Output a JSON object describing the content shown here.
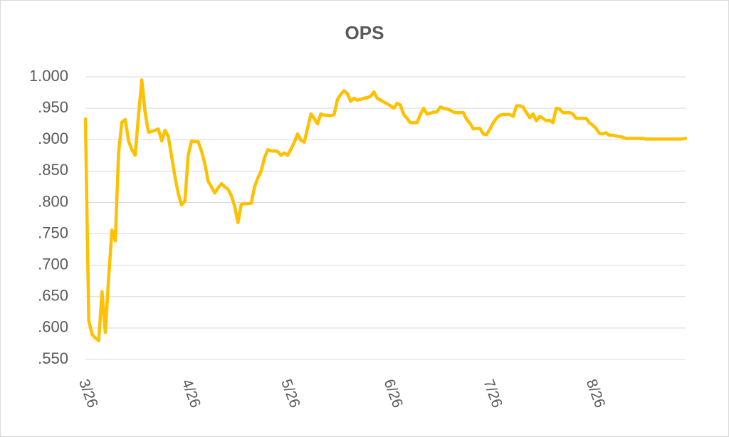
{
  "chart_data": {
    "type": "line",
    "title": "OPS",
    "categories": [
      "3/26",
      null,
      null,
      null,
      null,
      null,
      null,
      null,
      null,
      null,
      null,
      null,
      null,
      null,
      null,
      null,
      null,
      null,
      null,
      null,
      null,
      null,
      null,
      null,
      null,
      null,
      null,
      null,
      null,
      null,
      null,
      "4/26",
      null,
      null,
      null,
      null,
      null,
      null,
      null,
      null,
      null,
      null,
      null,
      null,
      null,
      null,
      null,
      null,
      null,
      null,
      null,
      null,
      null,
      null,
      null,
      null,
      null,
      null,
      null,
      null,
      null,
      "5/26",
      null,
      null,
      null,
      null,
      null,
      null,
      null,
      null,
      null,
      null,
      null,
      null,
      null,
      null,
      null,
      null,
      null,
      null,
      null,
      null,
      null,
      null,
      null,
      null,
      null,
      null,
      null,
      null,
      null,
      null,
      "6/26",
      null,
      null,
      null,
      null,
      null,
      null,
      null,
      null,
      null,
      null,
      null,
      null,
      null,
      null,
      null,
      null,
      null,
      null,
      null,
      null,
      null,
      null,
      null,
      null,
      null,
      null,
      null,
      null,
      null,
      "7/26",
      null,
      null,
      null,
      null,
      null,
      null,
      null,
      null,
      null,
      null,
      null,
      null,
      null,
      null,
      null,
      null,
      null,
      null,
      null,
      null,
      null,
      null,
      null,
      null,
      null,
      null,
      null,
      null,
      null,
      null,
      "8/26",
      null,
      null,
      null,
      null,
      null,
      null,
      null,
      null,
      null,
      null,
      null,
      null,
      null,
      null,
      null,
      null,
      null,
      null,
      null,
      null,
      null,
      null,
      null,
      null,
      null,
      null,
      null,
      null
    ],
    "values": [
      0.933,
      0.612,
      0.59,
      0.584,
      0.58,
      0.658,
      0.593,
      0.68,
      0.756,
      0.739,
      0.879,
      0.928,
      0.932,
      0.898,
      0.884,
      0.875,
      0.938,
      0.995,
      0.943,
      0.912,
      0.913,
      0.915,
      0.917,
      0.898,
      0.915,
      0.905,
      0.873,
      0.841,
      0.814,
      0.796,
      0.802,
      0.875,
      0.898,
      0.897,
      0.897,
      0.882,
      0.862,
      0.834,
      0.825,
      0.815,
      0.823,
      0.83,
      0.825,
      0.821,
      0.811,
      0.794,
      0.768,
      0.797,
      0.798,
      0.798,
      0.799,
      0.825,
      0.839,
      0.85,
      0.871,
      0.884,
      0.882,
      0.882,
      0.881,
      0.875,
      0.879,
      0.875,
      0.885,
      0.896,
      0.909,
      0.899,
      0.896,
      0.918,
      0.941,
      0.934,
      0.925,
      0.941,
      0.939,
      0.939,
      0.938,
      0.94,
      0.964,
      0.972,
      0.978,
      0.973,
      0.961,
      0.966,
      0.963,
      0.964,
      0.966,
      0.967,
      0.969,
      0.976,
      0.966,
      0.963,
      0.96,
      0.957,
      0.954,
      0.95,
      0.958,
      0.955,
      0.94,
      0.934,
      0.927,
      0.927,
      0.927,
      0.94,
      0.95,
      0.941,
      0.942,
      0.944,
      0.944,
      0.952,
      0.95,
      0.949,
      0.947,
      0.944,
      0.943,
      0.943,
      0.943,
      0.932,
      0.926,
      0.917,
      0.918,
      0.918,
      0.909,
      0.908,
      0.917,
      0.927,
      0.934,
      0.939,
      0.94,
      0.94,
      0.94,
      0.937,
      0.954,
      0.954,
      0.952,
      0.943,
      0.935,
      0.941,
      0.93,
      0.937,
      0.934,
      0.93,
      0.931,
      0.927,
      0.95,
      0.949,
      0.943,
      0.943,
      0.943,
      0.941,
      0.934,
      0.934,
      0.934,
      0.934,
      0.927,
      0.923,
      0.918,
      0.91,
      0.909,
      0.911,
      0.907,
      0.907,
      0.906,
      0.905,
      0.904,
      0.902,
      0.902,
      0.902,
      0.902,
      0.902,
      0.902,
      0.901,
      0.901,
      0.901,
      0.901,
      0.901,
      0.901,
      0.901,
      0.901,
      0.901,
      0.901,
      0.901,
      0.901,
      0.902
    ],
    "color": "#ffc000",
    "ylim": [
      0.55,
      1.0
    ],
    "yticks": [
      {
        "value": 0.55,
        "label": ".550"
      },
      {
        "value": 0.6,
        "label": ".600"
      },
      {
        "value": 0.65,
        "label": ".650"
      },
      {
        "value": 0.7,
        "label": ".700"
      },
      {
        "value": 0.75,
        "label": ".750"
      },
      {
        "value": 0.8,
        "label": ".800"
      },
      {
        "value": 0.85,
        "label": ".850"
      },
      {
        "value": 0.9,
        "label": ".900"
      },
      {
        "value": 0.95,
        "label": ".950"
      },
      {
        "value": 1.0,
        "label": "1.000"
      }
    ],
    "grid": true
  }
}
